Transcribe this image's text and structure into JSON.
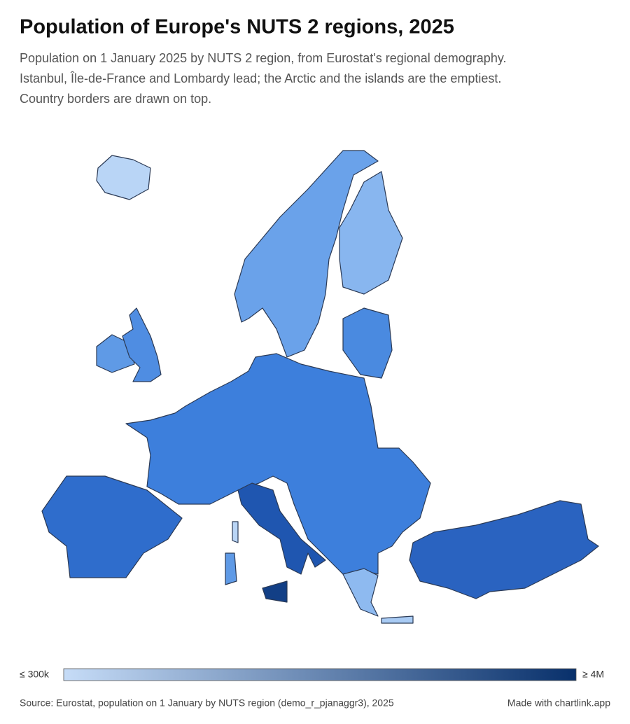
{
  "header": {
    "title": "Population of Europe's NUTS 2 regions, 2025",
    "subtitle": [
      "Population on 1 January 2025 by NUTS 2 region, from Eurostat's regional demography.",
      "Istanbul, Île-de-France and Lombardy lead; the Arctic and the islands are the emptiest.",
      "Country borders are drawn on top."
    ]
  },
  "legend": {
    "min": {
      "value": 300000,
      "label": "≤ 300k"
    },
    "max": {
      "value": 4000000,
      "label": "≥ 4M"
    },
    "colors": [
      "#c6dcf7",
      "#08306b"
    ]
  },
  "footer": {
    "source": "Source: Eurostat, population on 1 January by NUTS region (demo_r_pjanaggr3), 2025",
    "credit": "Made with chartlink.app"
  }
}
